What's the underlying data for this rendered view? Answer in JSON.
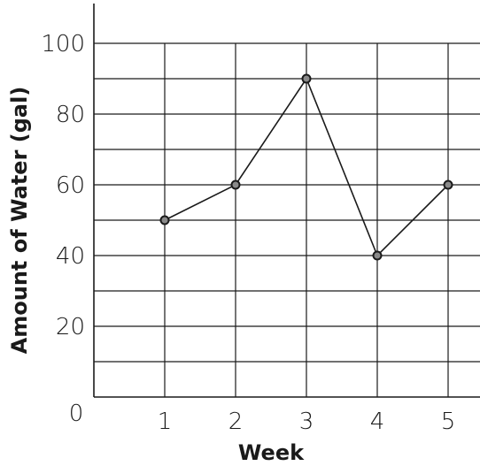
{
  "chart_data": {
    "type": "line",
    "xlabel": "Week",
    "ylabel": "Amount of Water (gal)",
    "x": [
      1,
      2,
      3,
      4,
      5
    ],
    "x_ticks": [
      1,
      2,
      3,
      4,
      5
    ],
    "origin_label": "0",
    "y_ticks": [
      20,
      40,
      60,
      80,
      100
    ],
    "y_ticks_labeled": [
      "20",
      "40",
      "60",
      "80",
      "100"
    ],
    "xlim": [
      0,
      5
    ],
    "ylim": [
      0,
      105
    ],
    "grid": true,
    "grid_y_step": 10,
    "series": [
      {
        "values": [
          50,
          60,
          90,
          40,
          60
        ]
      }
    ]
  }
}
